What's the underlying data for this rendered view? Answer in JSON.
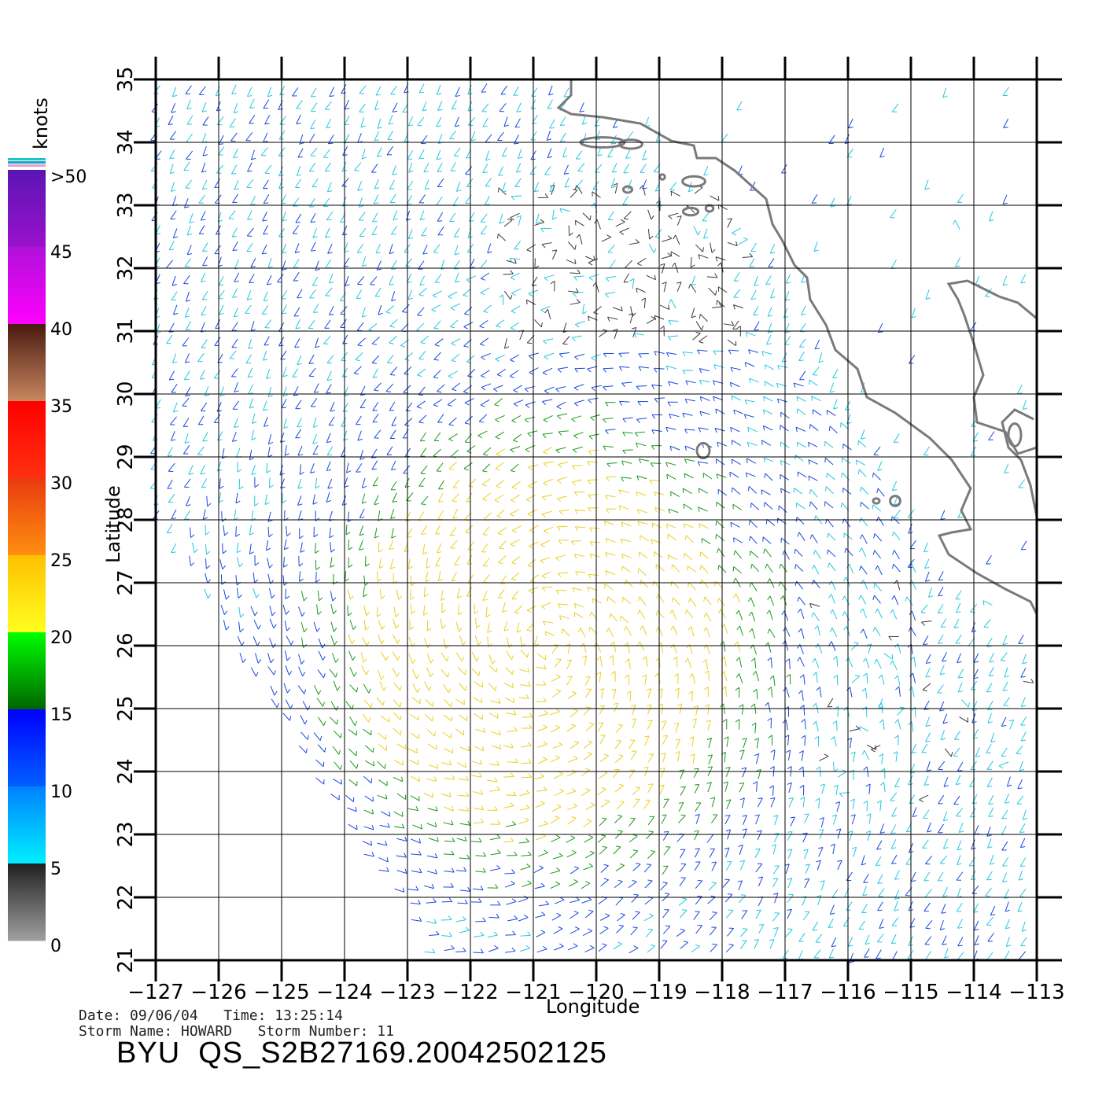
{
  "map": {
    "lon_range": [
      -127,
      -113
    ],
    "lat_range": [
      21,
      35
    ],
    "xlabel": "Longitude",
    "ylabel": "Latitude",
    "lon_ticks": [
      "−127",
      "−126",
      "−125",
      "−124",
      "−123",
      "−122",
      "−121",
      "−120",
      "−119",
      "−118",
      "−117",
      "−116",
      "−115",
      "−114",
      "−113"
    ],
    "lat_ticks": [
      "21",
      "22",
      "23",
      "24",
      "25",
      "26",
      "27",
      "28",
      "29",
      "30",
      "31",
      "32",
      "33",
      "34",
      "35"
    ],
    "grid": true,
    "storm_center": {
      "lon": -120.8,
      "lat": 26.0
    }
  },
  "legend": {
    "title": "knots",
    "labels": [
      ">50",
      "45",
      "40",
      "35",
      "30",
      "25",
      "20",
      "15",
      "10",
      "5",
      "0"
    ],
    "bands": [
      {
        "from": 45,
        "to": 50,
        "top": "#5a14b4",
        "bottom": "#9a12cc"
      },
      {
        "from": 40,
        "to": 45,
        "top": "#b010d8",
        "bottom": "#ff00ff"
      },
      {
        "from": 35,
        "to": 40,
        "top": "#4a1a10",
        "bottom": "#c88860"
      },
      {
        "from": 30,
        "to": 35,
        "top": "#ff0000",
        "bottom": "#ff3010"
      },
      {
        "from": 25,
        "to": 30,
        "top": "#e83a10",
        "bottom": "#ff9010"
      },
      {
        "from": 20,
        "to": 25,
        "top": "#ffc000",
        "bottom": "#ffff20"
      },
      {
        "from": 15,
        "to": 20,
        "top": "#00ff00",
        "bottom": "#006400"
      },
      {
        "from": 10,
        "to": 15,
        "top": "#0000ff",
        "bottom": "#0060ff"
      },
      {
        "from": 5,
        "to": 10,
        "top": "#0080ff",
        "bottom": "#00f0ff"
      },
      {
        "from": 0,
        "to": 5,
        "top": "#202020",
        "bottom": "#a0a0a0"
      }
    ],
    "cap_colors": [
      "#18c8c8",
      "#20a0c0",
      "#e0a0d0"
    ]
  },
  "info": {
    "line1": "Date: 09/06/04   Time: 13:25:14",
    "line2": "Storm Name: HOWARD   Storm Number: 11",
    "product": "BYU  QS_S2B27169.20042502125"
  },
  "colors": {
    "coast": "#7a7a7a",
    "grid": "#000000",
    "speed": {
      "lt5": "#3a3a3a",
      "5to10": "#22c8e0",
      "10to15": "#1848e0",
      "15to20": "#1a9a1a",
      "20to25": "#e8d020"
    }
  }
}
